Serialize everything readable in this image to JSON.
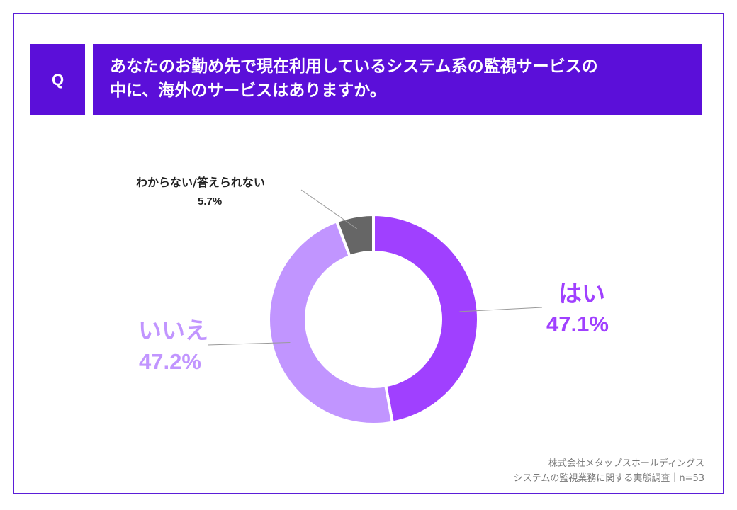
{
  "question": {
    "badge": "Q",
    "line1": "あなたのお勤め先で現在利用しているシステム系の監視サービスの",
    "line2": "中に、海外のサービスはありますか。"
  },
  "colors": {
    "accent": "#5b0fd9",
    "yes": "#a040ff",
    "no": "#c195ff",
    "unknown": "#666666"
  },
  "chart_data": {
    "type": "pie",
    "donut": true,
    "title": "あなたのお勤め先で現在利用しているシステム系の監視サービスの中に、海外のサービスはありますか。",
    "categories": [
      "はい",
      "いいえ",
      "わからない/答えられない"
    ],
    "values": [
      47.1,
      47.2,
      5.7
    ],
    "value_labels": [
      "47.1%",
      "47.2%",
      "5.7%"
    ],
    "start_angle": "12 o'clock, clockwise"
  },
  "source": {
    "line1": "株式会社メタップスホールディングス",
    "line2": "システムの監視業務に関する実態調査｜n=53"
  }
}
